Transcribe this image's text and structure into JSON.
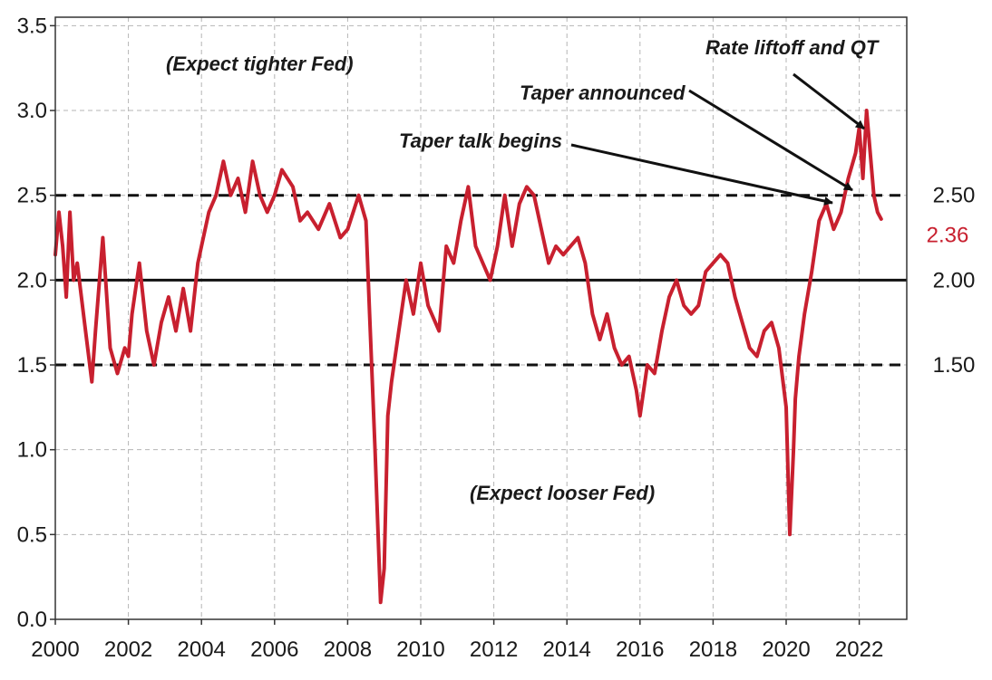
{
  "chart_data": {
    "type": "line",
    "title": "",
    "xlabel": "",
    "ylabel": "",
    "xlim": [
      2000,
      2023.3
    ],
    "ylim": [
      0,
      3.55
    ],
    "grid": true,
    "x_ticks": [
      "2000",
      "2002",
      "2004",
      "2006",
      "2008",
      "2010",
      "2012",
      "2014",
      "2016",
      "2018",
      "2020",
      "2022"
    ],
    "y_ticks": [
      "0.0",
      "0.5",
      "1.0",
      "1.5",
      "2.0",
      "2.5",
      "3.0",
      "3.5"
    ],
    "reference_lines": [
      {
        "value": 2.5,
        "style": "dashed",
        "label": "2.50"
      },
      {
        "value": 2.0,
        "style": "solid",
        "label": "2.00"
      },
      {
        "value": 1.5,
        "style": "dashed",
        "label": "1.50"
      }
    ],
    "latest_value_label": "2.36",
    "series_color": "#c8202f",
    "series": [
      {
        "x": [
          2000.0,
          2000.1,
          2000.2,
          2000.3,
          2000.4,
          2000.5,
          2000.6,
          2000.8,
          2001.0,
          2001.1,
          2001.3,
          2001.5,
          2001.7,
          2001.9,
          2002.0,
          2002.1,
          2002.3,
          2002.5,
          2002.7,
          2002.9,
          2003.1,
          2003.3,
          2003.5,
          2003.7,
          2003.9,
          2004.0,
          2004.2,
          2004.4,
          2004.6,
          2004.8,
          2005.0,
          2005.2,
          2005.4,
          2005.6,
          2005.8,
          2006.0,
          2006.2,
          2006.5,
          2006.7,
          2006.9,
          2007.2,
          2007.5,
          2007.8,
          2008.0,
          2008.3,
          2008.5,
          2008.6,
          2008.75,
          2008.9,
          2009.0,
          2009.1,
          2009.2,
          2009.4,
          2009.6,
          2009.8,
          2010.0,
          2010.2,
          2010.5,
          2010.7,
          2010.9,
          2011.1,
          2011.3,
          2011.5,
          2011.7,
          2011.9,
          2012.1,
          2012.3,
          2012.5,
          2012.7,
          2012.9,
          2013.1,
          2013.3,
          2013.5,
          2013.7,
          2013.9,
          2014.1,
          2014.3,
          2014.5,
          2014.7,
          2014.9,
          2015.1,
          2015.3,
          2015.5,
          2015.7,
          2015.9,
          2016.0,
          2016.2,
          2016.4,
          2016.6,
          2016.8,
          2017.0,
          2017.2,
          2017.4,
          2017.6,
          2017.8,
          2018.0,
          2018.2,
          2018.4,
          2018.6,
          2018.8,
          2019.0,
          2019.2,
          2019.4,
          2019.6,
          2019.8,
          2020.0,
          2020.1,
          2020.2,
          2020.25,
          2020.35,
          2020.5,
          2020.7,
          2020.9,
          2021.1,
          2021.3,
          2021.5,
          2021.7,
          2021.9,
          2022.0,
          2022.1,
          2022.2,
          2022.3,
          2022.4,
          2022.5,
          2022.6
        ],
        "y": [
          2.15,
          2.4,
          2.2,
          1.9,
          2.4,
          2.0,
          2.1,
          1.75,
          1.4,
          1.7,
          2.25,
          1.6,
          1.45,
          1.6,
          1.55,
          1.8,
          2.1,
          1.7,
          1.5,
          1.75,
          1.9,
          1.7,
          1.95,
          1.7,
          2.1,
          2.2,
          2.4,
          2.5,
          2.7,
          2.5,
          2.6,
          2.4,
          2.7,
          2.5,
          2.4,
          2.5,
          2.65,
          2.55,
          2.35,
          2.4,
          2.3,
          2.45,
          2.25,
          2.3,
          2.5,
          2.35,
          1.8,
          1.0,
          0.1,
          0.3,
          1.2,
          1.4,
          1.7,
          2.0,
          1.8,
          2.1,
          1.85,
          1.7,
          2.2,
          2.1,
          2.35,
          2.55,
          2.2,
          2.1,
          2.0,
          2.2,
          2.5,
          2.2,
          2.45,
          2.55,
          2.5,
          2.3,
          2.1,
          2.2,
          2.15,
          2.2,
          2.25,
          2.1,
          1.8,
          1.65,
          1.8,
          1.6,
          1.5,
          1.55,
          1.35,
          1.2,
          1.5,
          1.45,
          1.7,
          1.9,
          2.0,
          1.85,
          1.8,
          1.85,
          2.05,
          2.1,
          2.15,
          2.1,
          1.9,
          1.75,
          1.6,
          1.55,
          1.7,
          1.75,
          1.6,
          1.25,
          0.5,
          1.0,
          1.3,
          1.55,
          1.8,
          2.05,
          2.35,
          2.45,
          2.3,
          2.4,
          2.6,
          2.75,
          2.9,
          2.6,
          3.0,
          2.75,
          2.5,
          2.4,
          2.36
        ]
      }
    ]
  },
  "annotations": {
    "expect_tighter": "(Expect tighter Fed)",
    "expect_looser": "(Expect looser Fed)",
    "taper_talk": "Taper talk begins",
    "taper_announced": "Taper announced",
    "rate_liftoff": "Rate liftoff and QT"
  }
}
